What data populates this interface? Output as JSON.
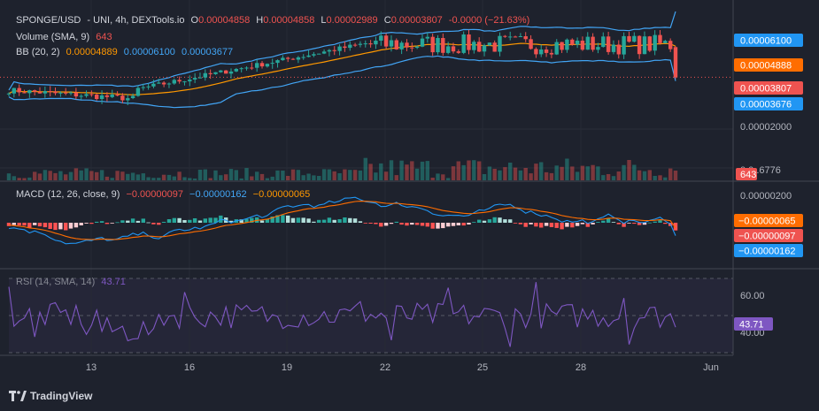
{
  "header": {
    "pair": "SPONGE/USD",
    "exchange": "- UNI, 4h, DEXTools.io",
    "open_label": "O",
    "open": "0.00004858",
    "high_label": "H",
    "high": "0.00004858",
    "low_label": "L",
    "low": "0.00002989",
    "close_label": "C",
    "close": "0.00003807",
    "change": "-0.0000 (−21.63%)"
  },
  "volume_legend": {
    "label": "Volume (SMA, 9)",
    "value": "643"
  },
  "bb_legend": {
    "label": "BB (20, 2)",
    "basis": "0.00004889",
    "upper": "0.00006100",
    "lower": "0.00003677"
  },
  "macd_legend": {
    "label": "MACD (12, 26, close, 9)",
    "hist": "−0.00000097",
    "macd": "−0.00000162",
    "signal": "−0.00000065"
  },
  "rsi_legend": {
    "label": "RSI (14, SMA, 14)",
    "value": "43.71"
  },
  "price_axis": {
    "ticks": [
      "0.00002000"
    ],
    "partial_tick": "0.0..6776"
  },
  "macd_axis": {
    "ticks": [
      "0.00000200"
    ]
  },
  "rsi_axis": {
    "ticks": [
      "60.00",
      "40.00"
    ]
  },
  "axis_badges": {
    "bb_upper": "0.00006100",
    "bb_basis": "0.00004888",
    "close": "0.00003807",
    "bb_lower": "0.00003676",
    "volume": "643",
    "macd_signal": "−0.00000065",
    "macd_hist": "−0.00000097",
    "macd_line": "−0.00000162",
    "rsi": "43.71"
  },
  "time_axis": {
    "labels": [
      "13",
      "16",
      "19",
      "22",
      "25",
      "28",
      "Jun"
    ]
  },
  "brand": "TradingView",
  "colors": {
    "background": "#1e222d",
    "up": "#26a69a",
    "down": "#ef5350",
    "bb_band": "#2962ff",
    "bb_basis": "#ff9800",
    "macd_line": "#2196f3",
    "signal_line": "#ff6d00",
    "rsi_line": "#7e57c2",
    "axis_text": "#b2b5be"
  },
  "chart_data": {
    "type": "candlestick",
    "price": {
      "open": 4.858e-05,
      "high": 4.858e-05,
      "low": 2.989e-05,
      "close": 3.807e-05,
      "change_percent": -21.63,
      "bb": {
        "length": 20,
        "mult": 2,
        "basis": 4.889e-05,
        "upper": 6.1e-05,
        "lower": 3.677e-05
      }
    },
    "volume": {
      "sma_length": 9,
      "last": 643
    },
    "macd": {
      "fast": 12,
      "slow": 26,
      "signal": 9,
      "histogram": -9.7e-07,
      "macd": -1.62e-06,
      "signal_value": -6.5e-07
    },
    "rsi": {
      "length": 14,
      "sma": 14,
      "value": 43.71,
      "ylim": [
        0,
        100
      ]
    },
    "x_labels": [
      "13",
      "16",
      "19",
      "22",
      "25",
      "28",
      "Jun"
    ]
  }
}
